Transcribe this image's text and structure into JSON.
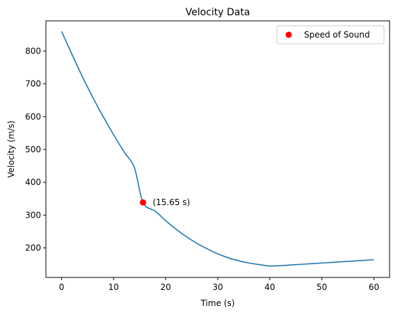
{
  "chart_data": {
    "type": "line",
    "title": "Velocity Data",
    "xlabel": "Time (s)",
    "ylabel": "Velocity (m/s)",
    "xlim": [
      -3,
      63
    ],
    "ylim": [
      110,
      892
    ],
    "xticks": [
      0,
      10,
      20,
      30,
      40,
      50,
      60
    ],
    "yticks": [
      200,
      300,
      400,
      500,
      600,
      700,
      800
    ],
    "grid": false,
    "legend_position": "top-right",
    "series": [
      {
        "type": "line",
        "color": "#1f77b4",
        "x": [
          0,
          2,
          4,
          6,
          8,
          10,
          12,
          14,
          15.65,
          18,
          20,
          22,
          24,
          26,
          28,
          30,
          32,
          34,
          36,
          38,
          40,
          42,
          44,
          46,
          48,
          50,
          52,
          54,
          56,
          58,
          60
        ],
        "y": [
          860,
          790,
          722,
          659,
          600,
          545,
          493,
          444,
          338.5,
          312,
          283,
          257,
          234,
          214,
          197,
          182,
          170,
          161,
          154,
          149,
          145,
          146,
          148,
          150,
          152,
          154,
          156,
          158,
          160,
          162,
          164
        ]
      },
      {
        "type": "scatter",
        "name": "Speed of Sound",
        "color": "#ff0000",
        "x": [
          15.65
        ],
        "y": [
          338.5
        ]
      }
    ],
    "annotations": [
      {
        "text": "(15.65 s)",
        "x": 17.5,
        "y": 338.5
      }
    ]
  }
}
